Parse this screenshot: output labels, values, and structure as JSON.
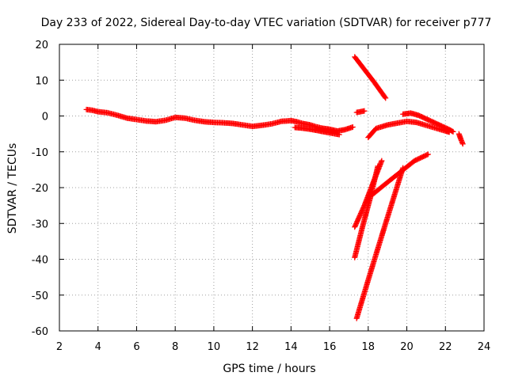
{
  "chart_data": {
    "type": "scatter",
    "title": "Day 233 of 2022, Sidereal Day-to-day VTEC variation (SDTVAR) for receiver p777",
    "xlabel": "GPS time / hours",
    "ylabel": "SDTVAR / TECUs",
    "xlim": [
      2,
      24
    ],
    "ylim": [
      -60,
      20
    ],
    "xticks": [
      "2",
      "4",
      "6",
      "8",
      "10",
      "12",
      "14",
      "16",
      "18",
      "20",
      "22",
      "24"
    ],
    "yticks": [
      "20",
      "10",
      "0",
      "-10",
      "-20",
      "-30",
      "-40",
      "-50",
      "-60"
    ],
    "grid": true,
    "marker_color": "#ff0000",
    "series": [
      {
        "values": [
          [
            3.4,
            1.8
          ],
          [
            3.7,
            1.6
          ],
          [
            4.0,
            1.2
          ],
          [
            4.5,
            0.9
          ],
          [
            5.0,
            0.2
          ],
          [
            5.5,
            -0.6
          ],
          [
            6.0,
            -1.0
          ],
          [
            6.5,
            -1.4
          ],
          [
            7.0,
            -1.6
          ],
          [
            7.5,
            -1.2
          ],
          [
            8.0,
            -0.4
          ],
          [
            8.5,
            -0.6
          ],
          [
            9.0,
            -1.2
          ],
          [
            9.5,
            -1.6
          ],
          [
            10.0,
            -1.8
          ],
          [
            10.5,
            -1.9
          ],
          [
            11.0,
            -2.1
          ],
          [
            11.5,
            -2.5
          ],
          [
            12.0,
            -2.9
          ],
          [
            12.5,
            -2.6
          ],
          [
            13.0,
            -2.2
          ],
          [
            13.5,
            -1.5
          ],
          [
            14.0,
            -1.3
          ],
          [
            14.3,
            -1.6
          ],
          [
            14.6,
            -2.1
          ],
          [
            15.0,
            -2.5
          ],
          [
            15.3,
            -3.0
          ],
          [
            15.6,
            -3.4
          ],
          [
            16.0,
            -3.7
          ],
          [
            16.4,
            -4.2
          ],
          [
            16.8,
            -3.8
          ],
          [
            17.2,
            -3.1
          ]
        ]
      },
      {
        "values": [
          [
            14.2,
            -3.2
          ],
          [
            14.6,
            -3.4
          ],
          [
            15.0,
            -3.7
          ],
          [
            15.4,
            -4.1
          ],
          [
            15.8,
            -4.5
          ],
          [
            16.2,
            -4.9
          ],
          [
            16.5,
            -5.2
          ]
        ]
      },
      {
        "values": [
          [
            17.3,
            16.5
          ],
          [
            17.8,
            13.0
          ],
          [
            18.3,
            9.5
          ],
          [
            18.9,
            5.0
          ]
        ]
      },
      {
        "values": [
          [
            17.4,
            1.0
          ],
          [
            17.8,
            1.4
          ]
        ]
      },
      {
        "values": [
          [
            18.0,
            -6.0
          ],
          [
            18.4,
            -3.5
          ],
          [
            19.0,
            -2.5
          ],
          [
            19.5,
            -2.0
          ],
          [
            20.0,
            -1.5
          ],
          [
            20.5,
            -1.8
          ],
          [
            21.0,
            -2.6
          ],
          [
            21.5,
            -3.4
          ],
          [
            22.0,
            -4.2
          ],
          [
            22.2,
            -4.5
          ]
        ]
      },
      {
        "values": [
          [
            19.8,
            0.5
          ],
          [
            20.2,
            0.8
          ],
          [
            20.6,
            0.2
          ],
          [
            21.0,
            -0.8
          ],
          [
            21.4,
            -1.8
          ],
          [
            21.8,
            -2.8
          ],
          [
            22.2,
            -3.8
          ],
          [
            22.4,
            -4.4
          ]
        ]
      },
      {
        "values": [
          [
            22.7,
            -5.0
          ],
          [
            22.8,
            -6.5
          ],
          [
            22.9,
            -7.8
          ]
        ]
      },
      {
        "values": [
          [
            17.3,
            -31.0
          ],
          [
            17.8,
            -25.0
          ],
          [
            18.3,
            -18.0
          ],
          [
            18.7,
            -12.5
          ]
        ]
      },
      {
        "values": [
          [
            17.3,
            -39.5
          ],
          [
            17.7,
            -31.0
          ],
          [
            18.1,
            -23.0
          ],
          [
            18.5,
            -14.0
          ]
        ]
      },
      {
        "values": [
          [
            17.4,
            -56.5
          ],
          [
            18.1,
            -44.0
          ],
          [
            18.9,
            -30.0
          ],
          [
            19.8,
            -14.5
          ]
        ]
      },
      {
        "values": [
          [
            18.2,
            -22.0
          ],
          [
            19.0,
            -18.5
          ],
          [
            19.7,
            -15.5
          ],
          [
            20.4,
            -12.5
          ],
          [
            21.1,
            -10.7
          ]
        ]
      }
    ]
  }
}
